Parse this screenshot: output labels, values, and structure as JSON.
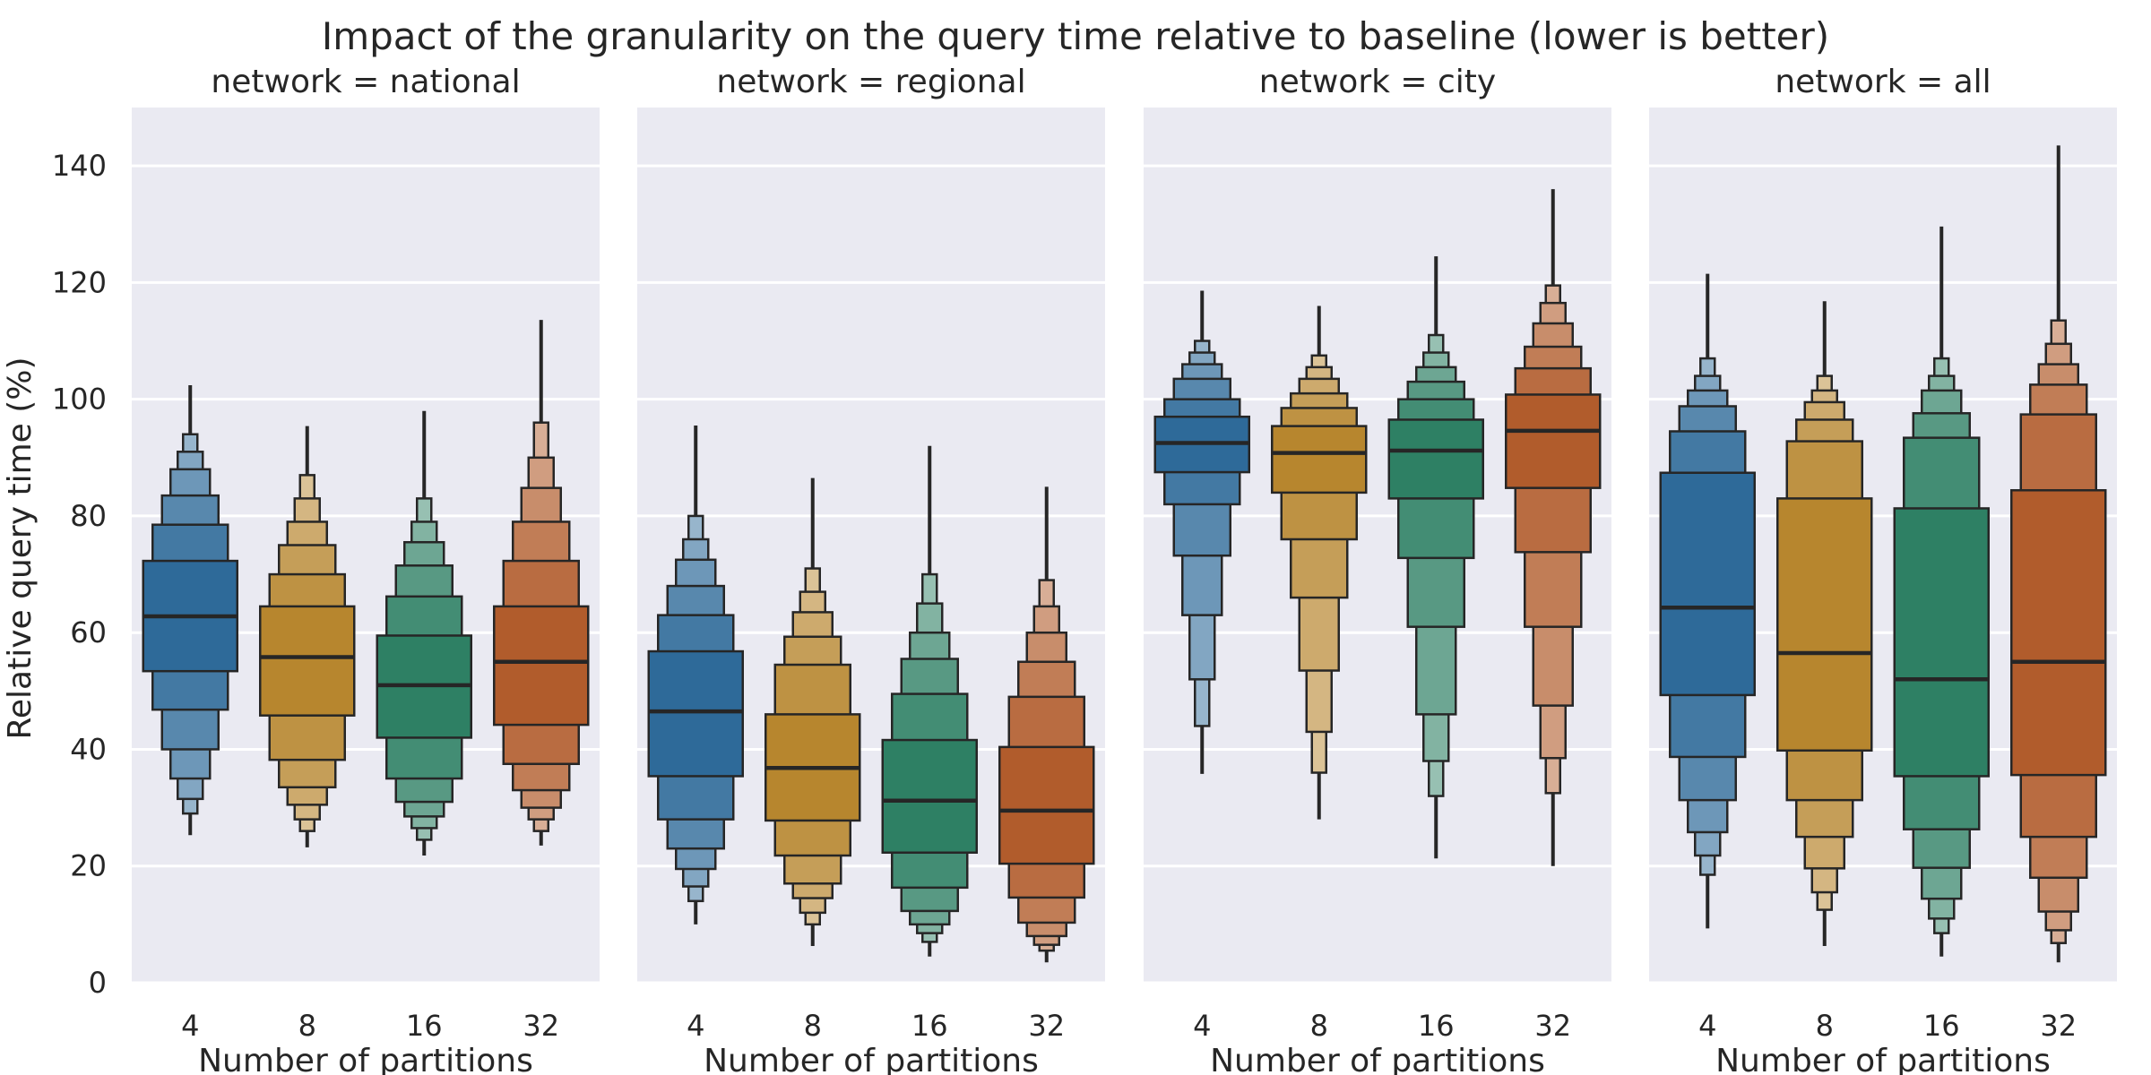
{
  "chart_data": {
    "type": "boxen",
    "title": "Impact of the granularity on the query time relative to baseline (lower is better)",
    "ylabel": "Relative query time (%)",
    "xlabel": "Number of partitions",
    "ylim": [
      0,
      150
    ],
    "yticks": [
      0,
      20,
      40,
      60,
      80,
      100,
      120,
      140
    ],
    "grid": true,
    "categories": [
      "4",
      "8",
      "16",
      "32"
    ],
    "colors": [
      "#2e6a99",
      "#b7862e",
      "#2e8064",
      "#b15c2c"
    ],
    "facets": [
      {
        "title": "network = national",
        "boxes": [
          {
            "category": "4",
            "median": 62.8,
            "levels": [
              [
                53.4,
                72.3
              ],
              [
                46.8,
                78.5
              ],
              [
                40.0,
                83.5
              ],
              [
                35.0,
                88.0
              ],
              [
                31.5,
                91.0
              ],
              [
                29.0,
                94.0
              ]
            ],
            "whisker": [
              25.3,
              102.4
            ]
          },
          {
            "category": "8",
            "median": 55.8,
            "levels": [
              [
                45.8,
                64.5
              ],
              [
                38.2,
                70.0
              ],
              [
                33.5,
                75.0
              ],
              [
                30.5,
                79.0
              ],
              [
                28.0,
                83.0
              ],
              [
                26.0,
                87.0
              ]
            ],
            "whisker": [
              23.2,
              95.4
            ]
          },
          {
            "category": "16",
            "median": 51.0,
            "levels": [
              [
                42.0,
                59.5
              ],
              [
                35.0,
                66.2
              ],
              [
                31.0,
                71.5
              ],
              [
                28.5,
                75.5
              ],
              [
                26.5,
                79.0
              ],
              [
                24.5,
                83.0
              ]
            ],
            "whisker": [
              21.8,
              98.0
            ]
          },
          {
            "category": "32",
            "median": 55.0,
            "levels": [
              [
                44.2,
                64.5
              ],
              [
                37.5,
                72.3
              ],
              [
                33.0,
                79.0
              ],
              [
                30.0,
                84.8
              ],
              [
                28.0,
                90.0
              ],
              [
                26.0,
                96.0
              ]
            ],
            "whisker": [
              23.5,
              113.6
            ]
          }
        ]
      },
      {
        "title": "network = regional",
        "boxes": [
          {
            "category": "4",
            "median": 46.5,
            "levels": [
              [
                35.4,
                56.8
              ],
              [
                28.0,
                63.0
              ],
              [
                23.0,
                68.0
              ],
              [
                19.5,
                72.5
              ],
              [
                16.5,
                76.0
              ],
              [
                14.0,
                80.0
              ]
            ],
            "whisker": [
              10.0,
              95.5
            ]
          },
          {
            "category": "8",
            "median": 36.8,
            "levels": [
              [
                27.8,
                46.0
              ],
              [
                21.8,
                54.5
              ],
              [
                17.0,
                59.3
              ],
              [
                14.5,
                63.5
              ],
              [
                12.0,
                67.0
              ],
              [
                10.0,
                71.0
              ]
            ],
            "whisker": [
              6.3,
              86.5
            ]
          },
          {
            "category": "16",
            "median": 31.2,
            "levels": [
              [
                22.3,
                41.6
              ],
              [
                16.3,
                49.5
              ],
              [
                12.3,
                55.5
              ],
              [
                10.0,
                60.0
              ],
              [
                8.5,
                65.0
              ],
              [
                7.0,
                70.0
              ]
            ],
            "whisker": [
              4.5,
              92.0
            ]
          },
          {
            "category": "32",
            "median": 29.5,
            "levels": [
              [
                20.4,
                40.4
              ],
              [
                14.6,
                49.0
              ],
              [
                10.3,
                55.0
              ],
              [
                8.0,
                60.0
              ],
              [
                6.5,
                64.5
              ],
              [
                5.5,
                69.0
              ]
            ],
            "whisker": [
              3.5,
              85.0
            ]
          }
        ]
      },
      {
        "title": "network = city",
        "boxes": [
          {
            "category": "4",
            "median": 92.5,
            "levels": [
              [
                87.5,
                97.0
              ],
              [
                82.0,
                100.0
              ],
              [
                73.2,
                103.5
              ],
              [
                63.0,
                106.0
              ],
              [
                52.0,
                108.0
              ],
              [
                44.0,
                110.0
              ]
            ],
            "whisker": [
              35.8,
              118.6
            ]
          },
          {
            "category": "8",
            "median": 90.8,
            "levels": [
              [
                84.0,
                95.4
              ],
              [
                76.0,
                98.5
              ],
              [
                66.0,
                101.0
              ],
              [
                53.5,
                103.5
              ],
              [
                43.0,
                105.5
              ],
              [
                36.0,
                107.5
              ]
            ],
            "whisker": [
              28.0,
              116.0
            ]
          },
          {
            "category": "16",
            "median": 91.2,
            "levels": [
              [
                83.0,
                96.5
              ],
              [
                72.8,
                100.0
              ],
              [
                61.0,
                103.0
              ],
              [
                46.0,
                105.5
              ],
              [
                38.0,
                108.0
              ],
              [
                32.0,
                111.0
              ]
            ],
            "whisker": [
              21.3,
              124.5
            ]
          },
          {
            "category": "32",
            "median": 94.6,
            "levels": [
              [
                84.8,
                100.8
              ],
              [
                73.8,
                105.3
              ],
              [
                61.0,
                109.0
              ],
              [
                47.5,
                113.0
              ],
              [
                38.5,
                116.5
              ],
              [
                32.5,
                119.5
              ]
            ],
            "whisker": [
              20.0,
              136.0
            ]
          }
        ]
      },
      {
        "title": "network = all",
        "boxes": [
          {
            "category": "4",
            "median": 64.3,
            "levels": [
              [
                49.3,
                87.4
              ],
              [
                38.7,
                94.5
              ],
              [
                31.3,
                98.8
              ],
              [
                25.8,
                101.5
              ],
              [
                21.8,
                104.0
              ],
              [
                18.5,
                107.0
              ]
            ],
            "whisker": [
              9.3,
              121.5
            ]
          },
          {
            "category": "8",
            "median": 56.5,
            "levels": [
              [
                39.8,
                83.0
              ],
              [
                31.3,
                92.8
              ],
              [
                25.0,
                96.5
              ],
              [
                19.6,
                99.5
              ],
              [
                15.5,
                101.5
              ],
              [
                12.5,
                104.0
              ]
            ],
            "whisker": [
              6.3,
              116.8
            ]
          },
          {
            "category": "16",
            "median": 52.0,
            "levels": [
              [
                35.4,
                81.3
              ],
              [
                26.3,
                93.4
              ],
              [
                19.7,
                97.6
              ],
              [
                14.4,
                101.5
              ],
              [
                11.0,
                104.0
              ],
              [
                8.5,
                107.0
              ]
            ],
            "whisker": [
              4.5,
              129.6
            ]
          },
          {
            "category": "32",
            "median": 55.0,
            "levels": [
              [
                35.6,
                84.4
              ],
              [
                25.0,
                97.4
              ],
              [
                18.0,
                102.5
              ],
              [
                12.2,
                106.0
              ],
              [
                9.0,
                109.5
              ],
              [
                6.8,
                113.5
              ]
            ],
            "whisker": [
              3.5,
              143.5
            ]
          }
        ]
      }
    ]
  }
}
